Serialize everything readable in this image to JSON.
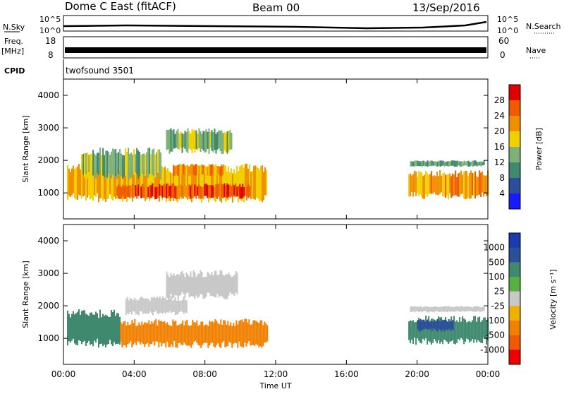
{
  "header": {
    "station": "Dome C East (fitACF)",
    "beam": "Beam 00",
    "date": "13/Sep/2016"
  },
  "top_panels": {
    "nsky_label": "N.Sky",
    "nsky_ticks": [
      "10^5",
      "10^0"
    ],
    "nsearch_label": "N.Search",
    "nsearch_ticks": [
      "10^5",
      "10^0"
    ],
    "freq_label": "Freq.",
    "freq_unit": "[MHz]",
    "freq_ticks": [
      "18",
      "8"
    ],
    "nave_label": "Nave",
    "nave_ticks": [
      "60",
      "0"
    ],
    "cpid_label": "CPID",
    "cpid_value": "twofsound 3501"
  },
  "colors": {
    "power_scale": [
      "#1a1aff",
      "#2c4f9c",
      "#3f8a6e",
      "#7fb07a",
      "#f0d000",
      "#f09000",
      "#f05a00",
      "#e00000"
    ],
    "velocity_scale": [
      "#ef0000",
      "#f05a00",
      "#f08000",
      "#f0b000",
      "#c8c8c8",
      "#58b040",
      "#3f8a6e",
      "#2c4f9c",
      "#1a3ab0"
    ]
  },
  "chart_data": [
    {
      "type": "heatmap",
      "panel": "power",
      "ylabel": "Slant Range [km]",
      "xlabel": "",
      "xlim": [
        0,
        24
      ],
      "ylim": [
        200,
        4500
      ],
      "yticks": [
        "1000",
        "2000",
        "3000",
        "4000"
      ],
      "colorbar_label": "Power [dB]",
      "colorbar_ticks": [
        "4",
        "8",
        "12",
        "16",
        "20",
        "24",
        "28"
      ],
      "colorbar_range": [
        0,
        32
      ],
      "echo_regions": [
        {
          "t0": 0.2,
          "t1": 11.5,
          "r0": 700,
          "r1": 1900,
          "value": 20
        },
        {
          "t0": 3.0,
          "t1": 10.5,
          "r0": 800,
          "r1": 1300,
          "value": 27
        },
        {
          "t0": 1.0,
          "t1": 5.5,
          "r0": 1400,
          "r1": 2400,
          "value": 14
        },
        {
          "t0": 5.8,
          "t1": 9.5,
          "r0": 2200,
          "r1": 3000,
          "value": 14
        },
        {
          "t0": 6.2,
          "t1": 9.0,
          "r0": 1500,
          "r1": 1900,
          "value": 22
        },
        {
          "t0": 19.5,
          "t1": 24.0,
          "r0": 800,
          "r1": 1700,
          "value": 22
        },
        {
          "t0": 19.6,
          "t1": 23.8,
          "r0": 1800,
          "r1": 2000,
          "value": 12
        }
      ]
    },
    {
      "type": "heatmap",
      "panel": "velocity",
      "ylabel": "Slant Range [km]",
      "xlabel": "Time UT",
      "xlim": [
        0,
        24
      ],
      "ylim": [
        200,
        4500
      ],
      "xticks": [
        "00:00",
        "04:00",
        "08:00",
        "12:00",
        "16:00",
        "20:00",
        "00:00"
      ],
      "yticks": [
        "1000",
        "2000",
        "3000",
        "4000"
      ],
      "colorbar_label": "Velocity [m s⁻¹]",
      "colorbar_ticks": [
        "1000",
        "500",
        "100",
        "25",
        "-25",
        "-100",
        "-500",
        "-1000"
      ],
      "echo_regions": [
        {
          "t0": 0.2,
          "t1": 3.2,
          "r0": 700,
          "r1": 1900,
          "value": 200
        },
        {
          "t0": 3.2,
          "t1": 11.5,
          "r0": 700,
          "r1": 1600,
          "value": -300
        },
        {
          "t0": 5.8,
          "t1": 9.8,
          "r0": 2200,
          "r1": 3100,
          "value": 0
        },
        {
          "t0": 3.5,
          "t1": 7.0,
          "r0": 1700,
          "r1": 2300,
          "value": 0
        },
        {
          "t0": 19.5,
          "t1": 24.0,
          "r0": 800,
          "r1": 1700,
          "value": 200
        },
        {
          "t0": 20.0,
          "t1": 22.0,
          "r0": 1200,
          "r1": 1600,
          "value": 800
        },
        {
          "t0": 19.6,
          "t1": 23.8,
          "r0": 1800,
          "r1": 2000,
          "value": 0
        }
      ]
    }
  ]
}
